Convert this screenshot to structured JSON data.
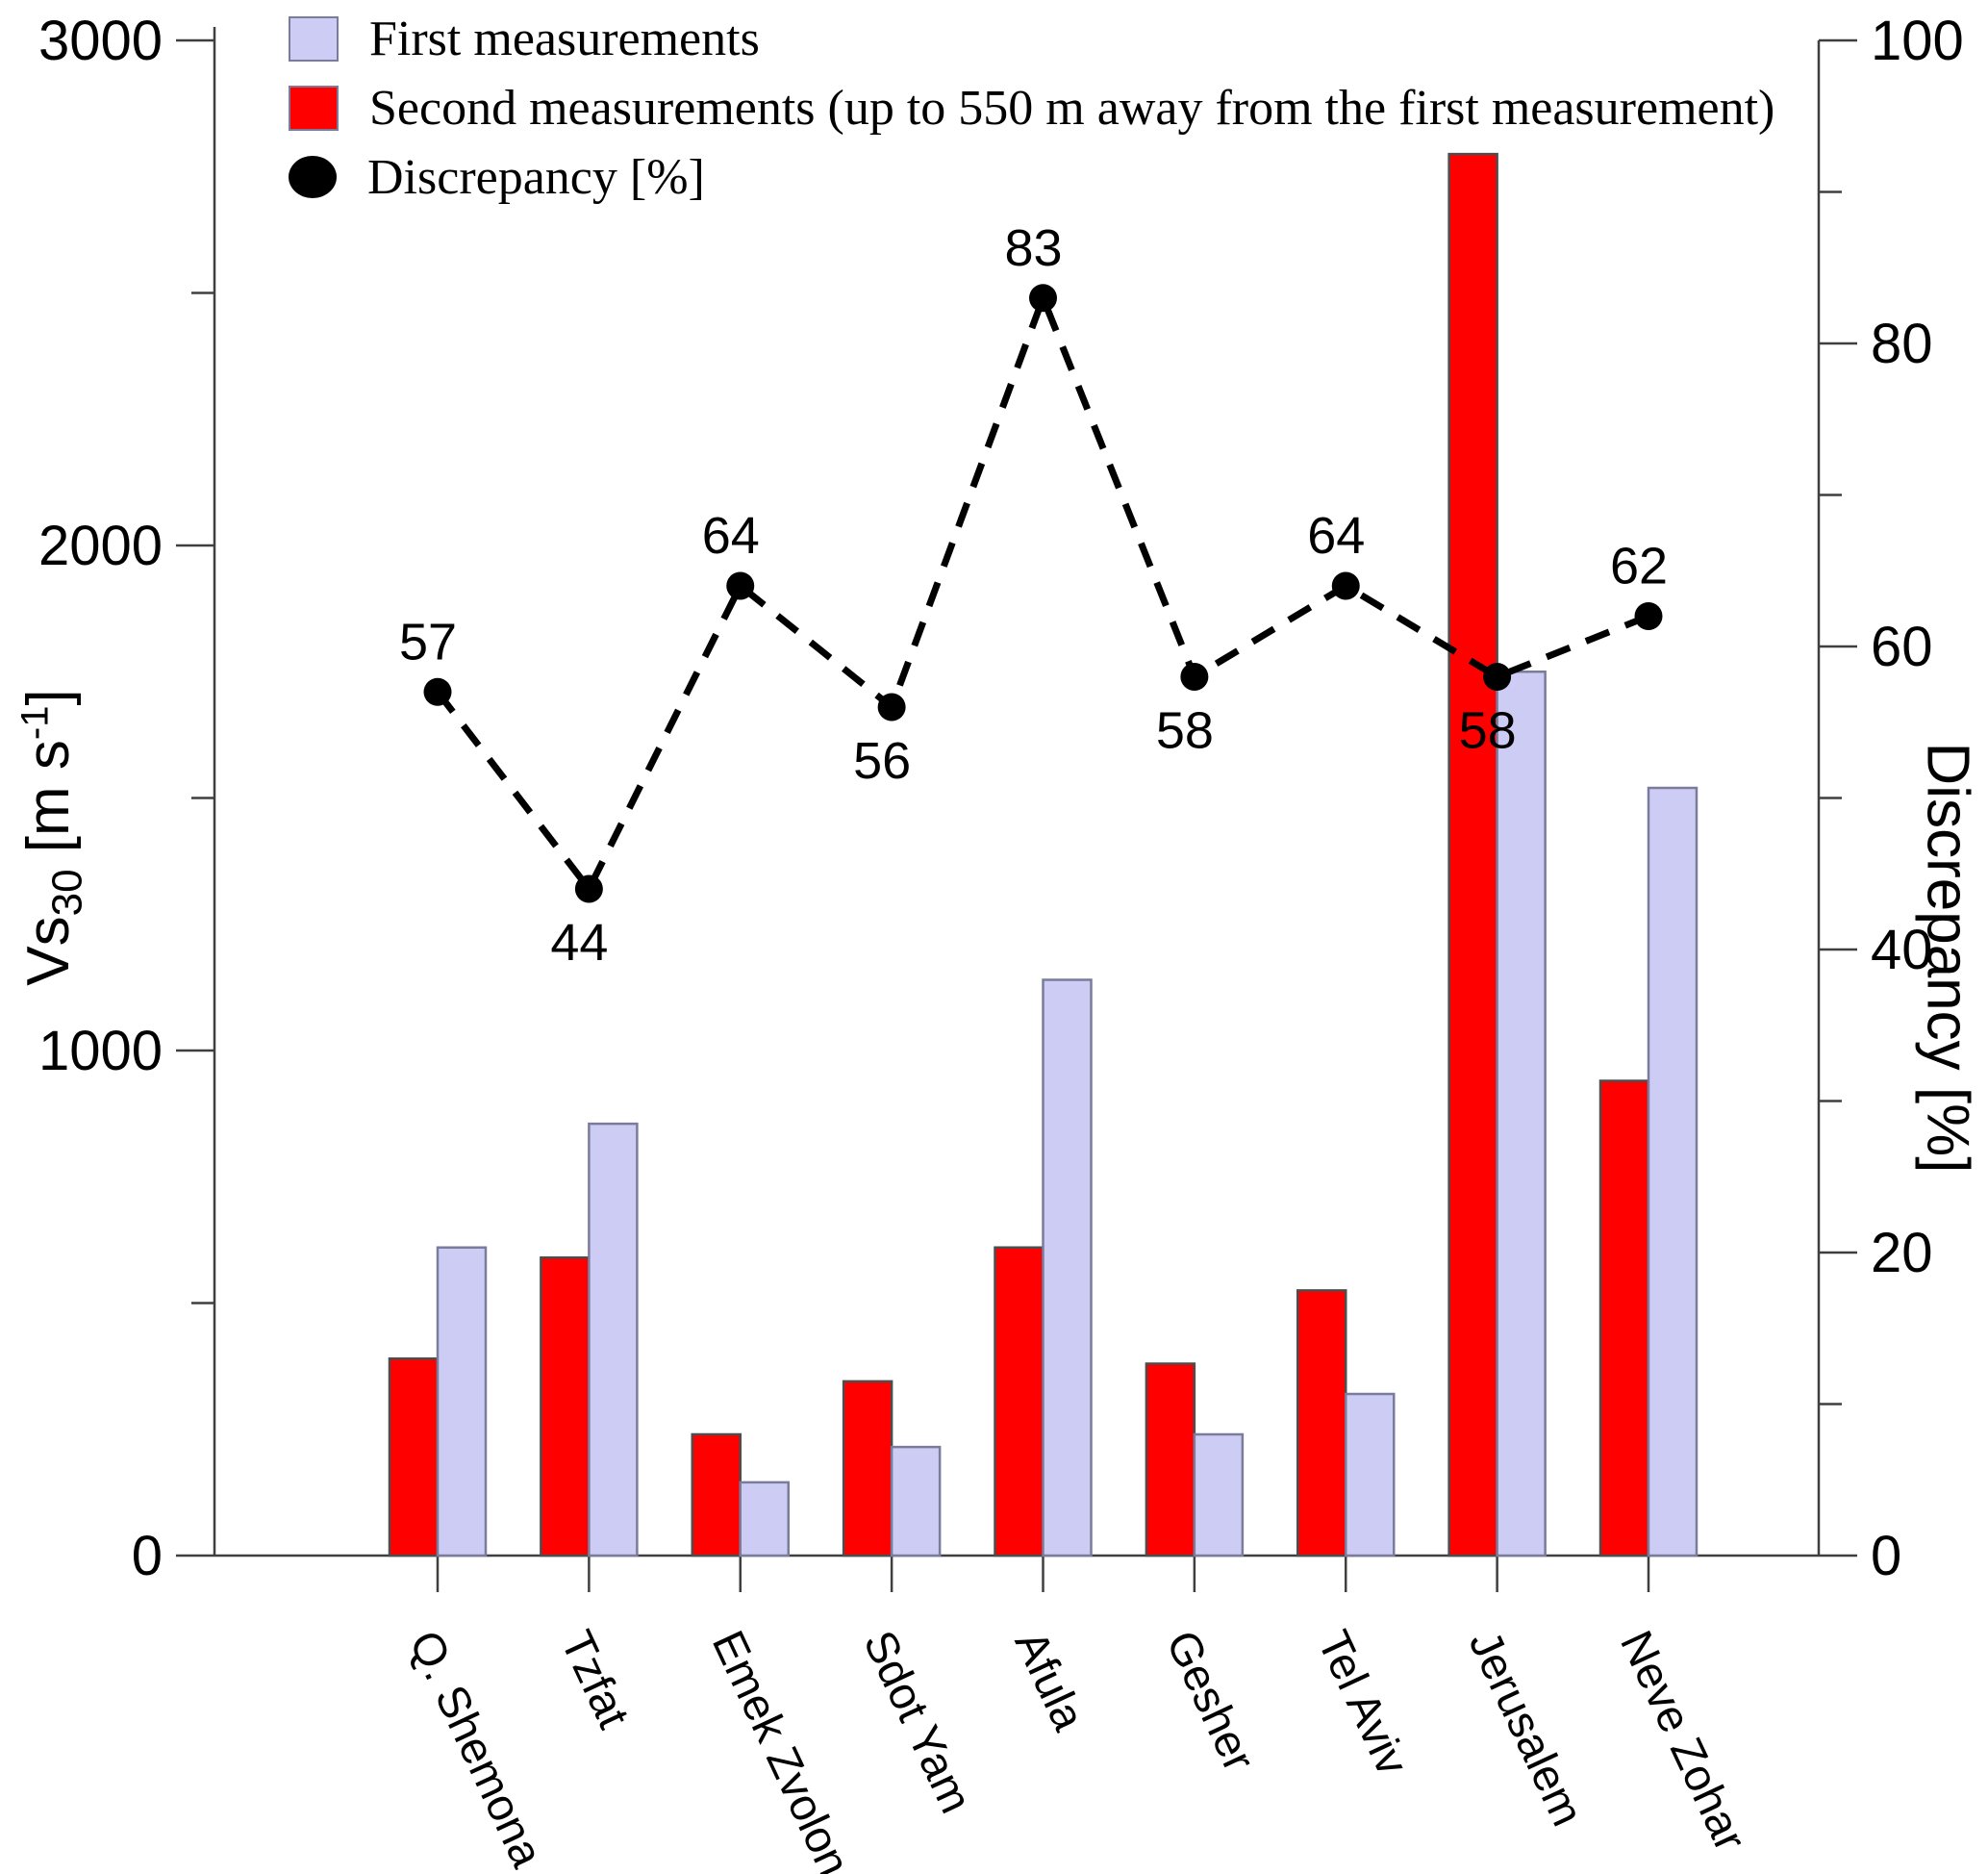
{
  "chart_data": {
    "type": "bar+line",
    "title": "",
    "categories": [
      "Q. Shemona",
      "Tzfat",
      "Emek Zvolon",
      "Sdot Yam",
      "Afula",
      "Gesher",
      "Tel Aviv",
      "Jerusalem",
      "Neve Zohar"
    ],
    "series": [
      {
        "name": "First measurements",
        "color": "#ccccf5",
        "border_color": "#7b7b9b",
        "values": [
          610,
          855,
          145,
          215,
          1140,
          240,
          320,
          1750,
          1520
        ]
      },
      {
        "name": "Second measurements (up to 550 m away from the first measurement)",
        "color": "#ff0000",
        "border_color": "#4d4d4d",
        "values": [
          390,
          590,
          240,
          345,
          610,
          380,
          525,
          2775,
          940
        ]
      }
    ],
    "line": {
      "name": "Discrepancy [%]",
      "color": "#000000",
      "style": "dashed",
      "marker": "filled-circle",
      "values": [
        57,
        44,
        64,
        56,
        83,
        58,
        64,
        58,
        62
      ],
      "label_placement": [
        "above",
        "below",
        "above",
        "below",
        "above",
        "below",
        "above",
        "below",
        "above"
      ]
    },
    "left_axis": {
      "label_main": "Vs",
      "label_sub": "30",
      "label_unit_pre": " [m s",
      "label_sup": "-1",
      "label_unit_post": "]",
      "min": 0,
      "max": 3000,
      "major_ticks": [
        0,
        1000,
        2000,
        3000
      ],
      "minor_ticks": [
        500,
        1500,
        2500
      ]
    },
    "right_axis": {
      "label": "Discrepancy [%]",
      "min": 0,
      "max": 100,
      "major_ticks": [
        0,
        20,
        40,
        60,
        80,
        100
      ],
      "minor_ticks": [
        10,
        30,
        50,
        70,
        90
      ]
    },
    "legend_position": "top-left",
    "grid": false
  }
}
